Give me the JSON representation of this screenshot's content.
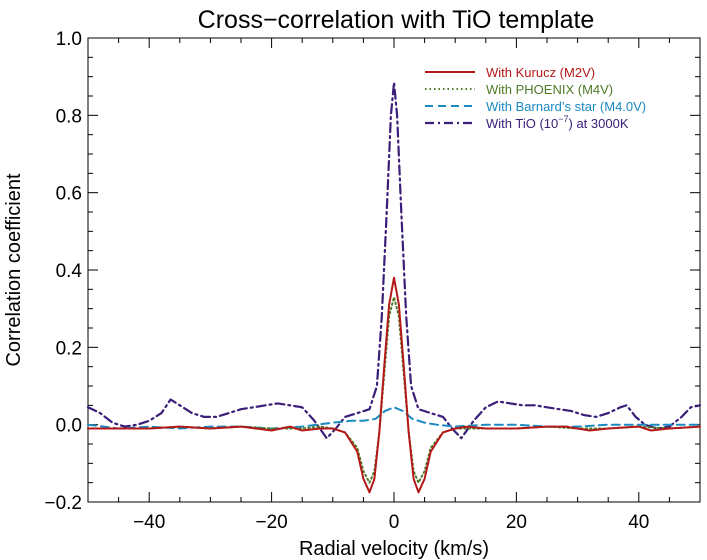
{
  "chart_data": {
    "type": "line",
    "title": "Cross−correlation with TiO template",
    "xlabel": "Radial velocity (km/s)",
    "ylabel": "Correlation coefficient",
    "xlim": [
      -50,
      50
    ],
    "ylim": [
      -0.2,
      1.0
    ],
    "xticks": [
      -40,
      -20,
      0,
      20,
      40
    ],
    "xtick_labels": [
      "−40",
      "−20",
      "0",
      "20",
      "40"
    ],
    "yticks": [
      -0.2,
      0.0,
      0.2,
      0.4,
      0.6,
      0.8,
      1.0
    ],
    "ytick_labels": [
      "−0.2",
      "0.0",
      "0.2",
      "0.4",
      "0.6",
      "0.8",
      "1.0"
    ],
    "legend_position": "top-right",
    "series": [
      {
        "name": "With Kurucz (M2V)",
        "color": "#b41818",
        "style": "solid",
        "points": [
          [
            -50,
            -0.01
          ],
          [
            -45,
            -0.01
          ],
          [
            -40,
            -0.01
          ],
          [
            -35,
            -0.005
          ],
          [
            -30,
            -0.01
          ],
          [
            -25,
            -0.005
          ],
          [
            -20,
            -0.015
          ],
          [
            -17,
            -0.005
          ],
          [
            -15,
            -0.015
          ],
          [
            -12,
            -0.01
          ],
          [
            -10,
            -0.01
          ],
          [
            -8,
            -0.02
          ],
          [
            -6,
            -0.07
          ],
          [
            -5,
            -0.14
          ],
          [
            -4,
            -0.175
          ],
          [
            -3.2,
            -0.14
          ],
          [
            -2.4,
            -0.02
          ],
          [
            -1.6,
            0.15
          ],
          [
            -0.8,
            0.31
          ],
          [
            0,
            0.38
          ],
          [
            0.8,
            0.31
          ],
          [
            1.6,
            0.15
          ],
          [
            2.4,
            -0.02
          ],
          [
            3.2,
            -0.14
          ],
          [
            4,
            -0.175
          ],
          [
            5,
            -0.14
          ],
          [
            6,
            -0.07
          ],
          [
            8,
            -0.02
          ],
          [
            10,
            -0.01
          ],
          [
            12,
            -0.005
          ],
          [
            15,
            -0.01
          ],
          [
            20,
            -0.01
          ],
          [
            25,
            -0.005
          ],
          [
            28,
            -0.005
          ],
          [
            32,
            -0.015
          ],
          [
            35,
            -0.01
          ],
          [
            40,
            -0.005
          ],
          [
            42,
            -0.015
          ],
          [
            45,
            -0.01
          ],
          [
            50,
            -0.005
          ]
        ]
      },
      {
        "name": "With PHOENIX (M4V)",
        "color": "#4f7a28",
        "style": "dotted",
        "points": [
          [
            -50,
            -0.01
          ],
          [
            -45,
            -0.01
          ],
          [
            -40,
            -0.01
          ],
          [
            -35,
            -0.005
          ],
          [
            -30,
            -0.01
          ],
          [
            -25,
            -0.005
          ],
          [
            -20,
            -0.01
          ],
          [
            -15,
            -0.01
          ],
          [
            -12,
            -0.005
          ],
          [
            -10,
            -0.01
          ],
          [
            -8,
            -0.02
          ],
          [
            -6,
            -0.06
          ],
          [
            -5,
            -0.12
          ],
          [
            -4,
            -0.15
          ],
          [
            -3.2,
            -0.12
          ],
          [
            -2.4,
            -0.02
          ],
          [
            -1.6,
            0.13
          ],
          [
            -0.8,
            0.28
          ],
          [
            0,
            0.33
          ],
          [
            0.8,
            0.28
          ],
          [
            1.6,
            0.13
          ],
          [
            2.4,
            -0.02
          ],
          [
            3.2,
            -0.12
          ],
          [
            4,
            -0.15
          ],
          [
            5,
            -0.12
          ],
          [
            6,
            -0.06
          ],
          [
            8,
            -0.02
          ],
          [
            10,
            -0.01
          ],
          [
            15,
            -0.01
          ],
          [
            20,
            -0.01
          ],
          [
            25,
            -0.005
          ],
          [
            30,
            -0.01
          ],
          [
            35,
            -0.01
          ],
          [
            40,
            -0.005
          ],
          [
            45,
            -0.01
          ],
          [
            50,
            -0.005
          ]
        ]
      },
      {
        "name": "With Barnard’s star (M4.0V)",
        "color": "#1c8ac2",
        "style": "dashed",
        "points": [
          [
            -50,
            0.0
          ],
          [
            -45,
            -0.01
          ],
          [
            -40,
            -0.005
          ],
          [
            -35,
            -0.01
          ],
          [
            -30,
            -0.005
          ],
          [
            -25,
            -0.005
          ],
          [
            -20,
            -0.01
          ],
          [
            -15,
            -0.005
          ],
          [
            -10,
            0.005
          ],
          [
            -7,
            0.01
          ],
          [
            -5,
            0.01
          ],
          [
            -3,
            0.015
          ],
          [
            -1.5,
            0.035
          ],
          [
            0,
            0.045
          ],
          [
            1.5,
            0.035
          ],
          [
            3,
            0.015
          ],
          [
            5,
            0.005
          ],
          [
            7,
            0.0
          ],
          [
            10,
            -0.005
          ],
          [
            15,
            0.0
          ],
          [
            20,
            0.0
          ],
          [
            25,
            -0.005
          ],
          [
            30,
            -0.005
          ],
          [
            35,
            0.0
          ],
          [
            40,
            0.0
          ],
          [
            45,
            0.0
          ],
          [
            50,
            0.0
          ]
        ]
      },
      {
        "name": "With TiO (10⁻⁷) at 3000K",
        "label_main": "With TiO (10",
        "label_exp": "−7",
        "label_tail": ") at 3000K",
        "color": "#3a1e78",
        "style": "dashdot",
        "points": [
          [
            -50,
            0.045
          ],
          [
            -48,
            0.03
          ],
          [
            -46,
            0.005
          ],
          [
            -44,
            -0.005
          ],
          [
            -42,
            0.0
          ],
          [
            -40,
            0.01
          ],
          [
            -38,
            0.03
          ],
          [
            -36.5,
            0.065
          ],
          [
            -35,
            0.05
          ],
          [
            -33,
            0.03
          ],
          [
            -31,
            0.02
          ],
          [
            -29,
            0.02
          ],
          [
            -27,
            0.03
          ],
          [
            -25,
            0.04
          ],
          [
            -23,
            0.045
          ],
          [
            -21,
            0.05
          ],
          [
            -19,
            0.055
          ],
          [
            -17,
            0.05
          ],
          [
            -15,
            0.045
          ],
          [
            -13,
            0.01
          ],
          [
            -11,
            -0.035
          ],
          [
            -9.5,
            -0.01
          ],
          [
            -8,
            0.02
          ],
          [
            -6,
            0.03
          ],
          [
            -4,
            0.04
          ],
          [
            -2.8,
            0.1
          ],
          [
            -2,
            0.28
          ],
          [
            -1.2,
            0.55
          ],
          [
            -0.5,
            0.8
          ],
          [
            0,
            0.885
          ],
          [
            0.5,
            0.8
          ],
          [
            1.2,
            0.55
          ],
          [
            2,
            0.28
          ],
          [
            2.8,
            0.1
          ],
          [
            4,
            0.04
          ],
          [
            6,
            0.03
          ],
          [
            8,
            0.02
          ],
          [
            9.5,
            -0.01
          ],
          [
            11,
            -0.035
          ],
          [
            13,
            0.01
          ],
          [
            15,
            0.045
          ],
          [
            17,
            0.06
          ],
          [
            19,
            0.055
          ],
          [
            21,
            0.05
          ],
          [
            23,
            0.05
          ],
          [
            25,
            0.045
          ],
          [
            27,
            0.04
          ],
          [
            29,
            0.035
          ],
          [
            31,
            0.025
          ],
          [
            33,
            0.02
          ],
          [
            35,
            0.03
          ],
          [
            37,
            0.045
          ],
          [
            38,
            0.05
          ],
          [
            39.5,
            0.02
          ],
          [
            41,
            0.0
          ],
          [
            43,
            -0.01
          ],
          [
            45,
            -0.005
          ],
          [
            47,
            0.02
          ],
          [
            48.5,
            0.045
          ],
          [
            50,
            0.05
          ]
        ]
      }
    ]
  }
}
